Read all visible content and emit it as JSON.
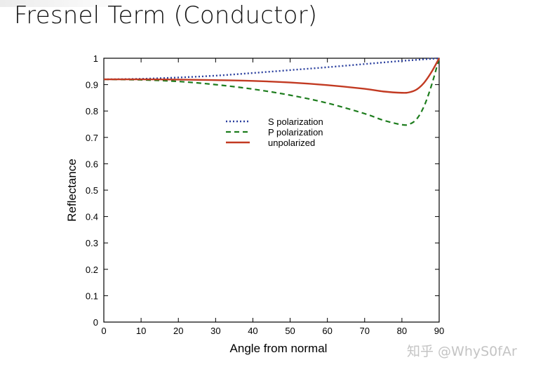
{
  "slide": {
    "title": "Fresnel Term (Conductor)"
  },
  "watermark": "知乎 @WhyS0fAr",
  "colors": {
    "s_polarization": "#2a3f9e",
    "p_polarization": "#1e7d1e",
    "unpolarized": "#c23a22",
    "axis": "#000000"
  },
  "chart_data": {
    "type": "line",
    "title": "",
    "xlabel": "Angle from normal",
    "ylabel": "Reflectance",
    "xlim": [
      0,
      90
    ],
    "ylim": [
      0,
      1
    ],
    "xticks": [
      0,
      10,
      20,
      30,
      40,
      50,
      60,
      70,
      80,
      90
    ],
    "yticks": [
      0,
      0.1,
      0.2,
      0.3,
      0.4,
      0.5,
      0.6,
      0.7,
      0.8,
      0.9,
      1
    ],
    "ytick_labels": [
      "0",
      "0.1",
      "0.2",
      "0.3",
      "0.4",
      "0.5",
      "0.6",
      "0.7",
      "0.8",
      "0.9",
      "1"
    ],
    "grid": false,
    "legend_position": "upper-middle",
    "x": [
      0,
      10,
      20,
      30,
      40,
      50,
      60,
      70,
      75,
      80,
      82,
      84,
      86,
      88,
      90
    ],
    "series": [
      {
        "name": "S polarization",
        "style": "dotted",
        "values": [
          0.92,
          0.922,
          0.927,
          0.934,
          0.944,
          0.955,
          0.966,
          0.978,
          0.984,
          0.99,
          0.992,
          0.994,
          0.996,
          0.998,
          1.0
        ]
      },
      {
        "name": "P polarization",
        "style": "dashed",
        "values": [
          0.92,
          0.918,
          0.912,
          0.9,
          0.883,
          0.86,
          0.83,
          0.79,
          0.765,
          0.748,
          0.75,
          0.77,
          0.82,
          0.9,
          1.0
        ]
      },
      {
        "name": "unpolarized",
        "style": "solid",
        "values": [
          0.92,
          0.92,
          0.919,
          0.917,
          0.914,
          0.908,
          0.898,
          0.884,
          0.874,
          0.869,
          0.871,
          0.882,
          0.908,
          0.949,
          1.0
        ]
      }
    ]
  }
}
